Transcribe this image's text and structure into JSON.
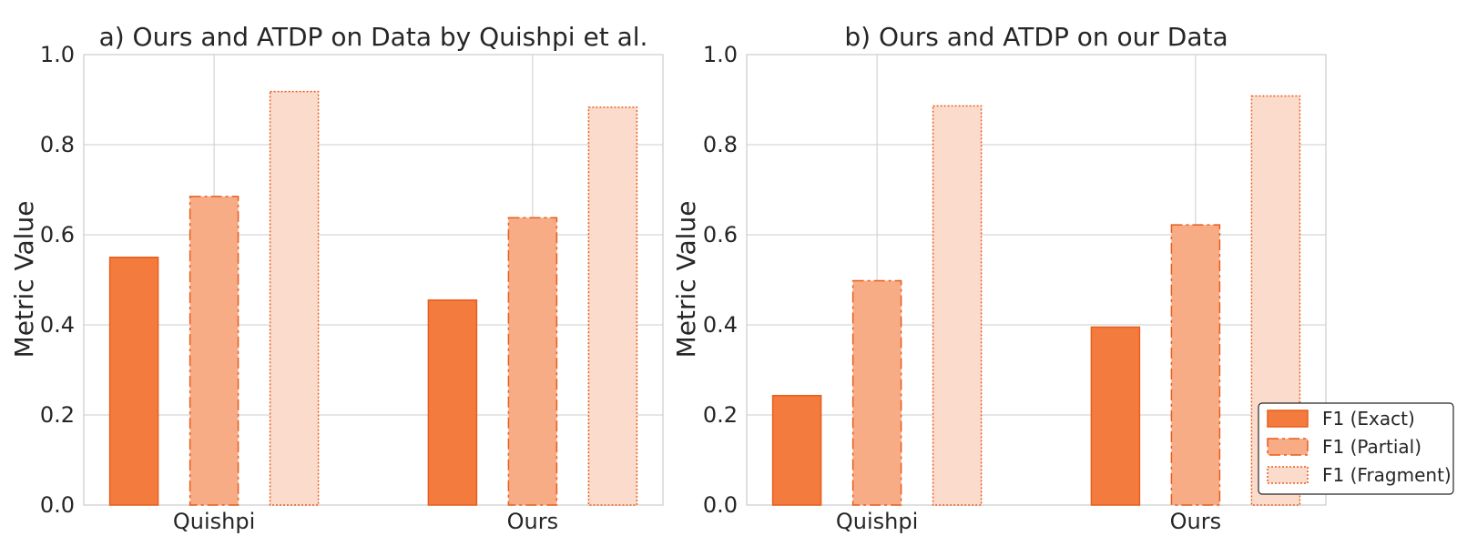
{
  "chart_data": [
    {
      "type": "bar",
      "title": "a) Ours and ATDP on Data by Quishpi et al.",
      "xlabel": "",
      "ylabel": "Metric Value",
      "ylim": [
        0,
        1.0
      ],
      "yticks": [
        "0.0",
        "0.2",
        "0.4",
        "0.6",
        "0.8",
        "1.0"
      ],
      "categories": [
        "Quishpi",
        "Ours"
      ],
      "grid": true,
      "series": [
        {
          "name": "F1 (Exact)",
          "values": [
            0.55,
            0.455
          ]
        },
        {
          "name": "F1 (Partial)",
          "values": [
            0.685,
            0.638
          ]
        },
        {
          "name": "F1 (Fragment)",
          "values": [
            0.918,
            0.883
          ]
        }
      ]
    },
    {
      "type": "bar",
      "title": "b) Ours and ATDP on our Data",
      "xlabel": "",
      "ylabel": "Metric Value",
      "ylim": [
        0,
        1.0
      ],
      "yticks": [
        "0.0",
        "0.2",
        "0.4",
        "0.6",
        "0.8",
        "1.0"
      ],
      "categories": [
        "Quishpi",
        "Ours"
      ],
      "grid": true,
      "legend": "lower-right",
      "series": [
        {
          "name": "F1 (Exact)",
          "values": [
            0.243,
            0.395
          ]
        },
        {
          "name": "F1 (Partial)",
          "values": [
            0.498,
            0.622
          ]
        },
        {
          "name": "F1 (Fragment)",
          "values": [
            0.886,
            0.908
          ]
        }
      ]
    }
  ],
  "colors": {
    "exact_fill": "#f47b3e",
    "partial_fill": "#f7ac86",
    "fragment_fill": "#fbdccc",
    "edge": "#e85d1c"
  }
}
